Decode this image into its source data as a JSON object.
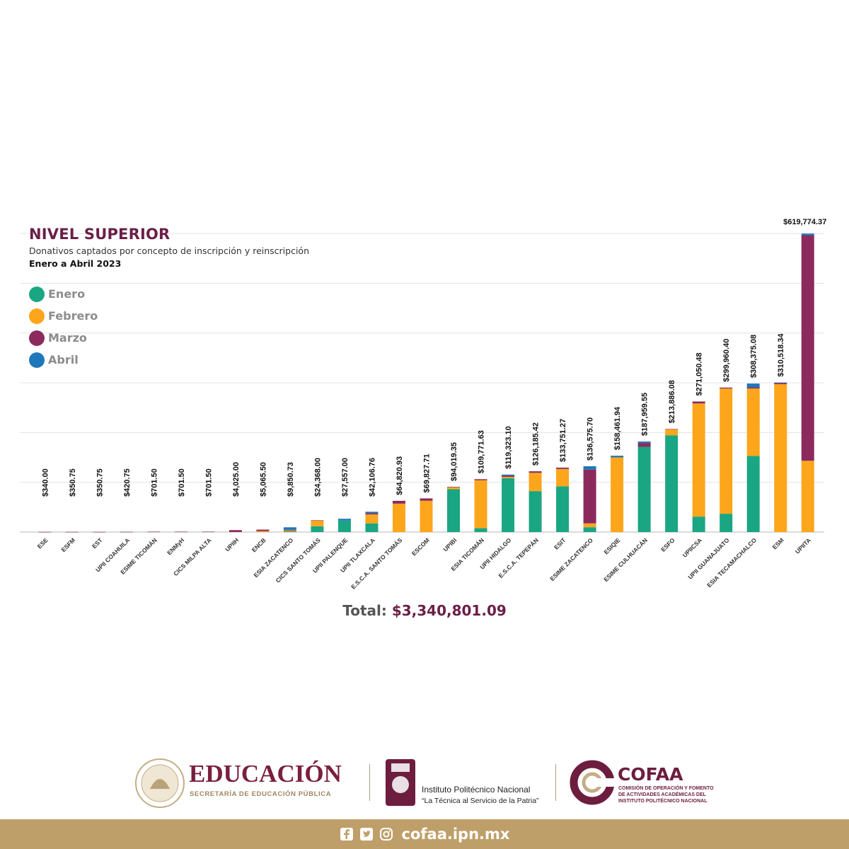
{
  "chart_data": {
    "type": "bar",
    "stacked": true,
    "title": "NIVEL SUPERIOR",
    "subtitle": "Donativos captados por concepto de inscripción y reinscripción",
    "period": "Enero a Abril 2023",
    "ylim": [
      0,
      620000
    ],
    "grid": true,
    "legend_position": "top-left",
    "categories": [
      "ESE",
      "ESFM",
      "EST",
      "UPII COAHUILA",
      "ESIME TICOMÁN",
      "ENMyH",
      "CICS MILPA ALTA",
      "UPIIH",
      "ENCB",
      "ESIA ZACATENCO",
      "CICS SANTO TOMÁS",
      "UPII PALENQUE",
      "UPII TLAXCALA",
      "E.S.C.A. SANTO TOMÁS",
      "ESCOM",
      "UPIBI",
      "ESIA TICOMÁN",
      "UPII HIDALGO",
      "E.S.C.A. TEPEPÁN",
      "ESIT",
      "ESIME ZACATENCO",
      "ESIQIE",
      "ESIME CULHUACÁN",
      "ESFO",
      "UPIICSA",
      "UPII GUANAJUATO",
      "ESIA TECAMACHALCO",
      "ESM",
      "UPIITA"
    ],
    "totals": [
      "$340.00",
      "$350.75",
      "$350.75",
      "$420.75",
      "$701.50",
      "$701.50",
      "$701.50",
      "$4,025.00",
      "$5,065.50",
      "$9,850.73",
      "$24,368.00",
      "$27,557.00",
      "$42,106.76",
      "$64,820.93",
      "$69,827.71",
      "$94,019.35",
      "$109,771.63",
      "$119,323.10",
      "$126,185.42",
      "$133,751.27",
      "$136,575.70",
      "$158,461.94",
      "$187,959.55",
      "$213,886.08",
      "$271,050.48",
      "$299,960.40",
      "$308,375.08",
      "$310,518.34",
      "$619,774.37"
    ],
    "series": [
      {
        "name": "Enero",
        "color": "#1aa682",
        "values": [
          0,
          0,
          0,
          0,
          0,
          0,
          0,
          0,
          0,
          1500,
          12000,
          24000,
          18000,
          0,
          0,
          89000,
          8000,
          112000,
          85000,
          95000,
          10000,
          0,
          177000,
          201000,
          32000,
          38000,
          158000,
          0,
          0
        ]
      },
      {
        "name": "Febrero",
        "color": "#fda61b",
        "values": [
          0,
          0,
          0,
          0,
          0,
          0,
          0,
          0,
          2000,
          1800,
          11500,
          0,
          18500,
          59000,
          65000,
          4000,
          99500,
          2500,
          38000,
          36000,
          8000,
          155000,
          0,
          12000,
          235000,
          260000,
          140000,
          307000,
          148000
        ]
      },
      {
        "name": "Marzo",
        "color": "#8c2a5e",
        "values": [
          340,
          350.75,
          350.75,
          420.75,
          701.5,
          701.5,
          701.5,
          4025,
          3065.5,
          1500,
          868,
          0,
          2606.76,
          5820.93,
          4827.71,
          1019.35,
          2271.63,
          2823.1,
          3185.42,
          2751.27,
          111575.7,
          0,
          7959.55,
          886.08,
          4050.48,
          1960.4,
          2375.08,
          2518.34,
          468274.37
        ]
      },
      {
        "name": "Abril",
        "color": "#1e77b8",
        "values": [
          0,
          0,
          0,
          0,
          0,
          0,
          0,
          0,
          0,
          5050.73,
          0,
          3557,
          3000,
          0,
          0,
          0,
          0,
          2000,
          0,
          0,
          7000,
          3461.94,
          3000,
          0,
          0,
          0,
          8000,
          1000,
          3500
        ]
      }
    ],
    "total_label": "Total:",
    "total_value": "$3,340,801.09"
  },
  "logos": {
    "sep_title": "EDUCACIÓN",
    "sep_subtitle": "SECRETARÍA DE EDUCACIÓN PÚBLICA",
    "ipn_name": "Instituto Politécnico Nacional",
    "ipn_motto": "“La Técnica al Servicio de la Patria”",
    "cofaa_title": "COFAA",
    "cofaa_sub1": "COMISIÓN DE OPERACIÓN Y FOMENTO",
    "cofaa_sub2": "DE ACTIVIDADES ACADÉMICAS DEL",
    "cofaa_sub3": "INSTITUTO POLITÉCNICO NACIONAL"
  },
  "footer": {
    "url": "cofaa.ipn.mx",
    "icons": [
      "facebook-icon",
      "twitter-icon",
      "instagram-icon"
    ],
    "background": "#bf9f69"
  }
}
